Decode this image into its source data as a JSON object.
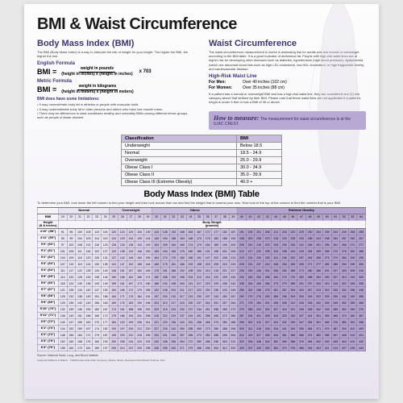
{
  "title": "BMI & Waist Circumference",
  "bmi": {
    "heading": "Body Mass Index (BMI)",
    "intro": "The BMI (Body Mass Index) is a way to interpret the risk of weight for your height. The higher the BMI, the higher the risk.",
    "english_label": "English Formula",
    "metric_label": "Metric Formula",
    "bmi_eq": "BMI =",
    "english_num": "weight in pounds",
    "english_den": "(height in inches) x (height in inches)",
    "x703": "x 703",
    "metric_num": "weight in kilograms",
    "metric_den": "(height in meters) x (height in meters)",
    "limits_heading": "BMI does have some limitations:",
    "limits": [
      "It may overestimate body fat in athletes or people with muscular build.",
      "It may underestimate body fat in older persons and others who have lost muscle mass.",
      "There may be differences in what constitutes healthy and unhealthy BMIs among different ethnic groups, such as people of Asian descent."
    ]
  },
  "waist": {
    "heading": "Waist Circumference",
    "intro": "The waist circumference measurement is useful in assessing risk for adults who are normal or overweight according to the BMI table. It is a good indicator of abdominal fat. People with high-risk waist lines are at higher risk for developing other diseases such as diabetes, hypertension (high blood pressure), dyslipidemia (which are abnormal blood fats such as high LDL cholesterol, low HDL cholesterol, or high triglyceride levels), and cardiovascular disease.",
    "hr_heading": "High-Risk Waist Line",
    "hr_men_label": "For Men:",
    "hr_men_val": "Over 40 inches (102 cm)",
    "hr_women_label": "For Women:",
    "hr_women_val": "Over 35 inches (88 cm)",
    "hr_note": "If a patient has a normal or overweight BMI and has a high-risk waist line, they are considered one (1) risk category above that defined by their BMI. Please note that these waist lines are not applicable if a patient's height is under 5 feet or has a BMI of 35 or above.",
    "how_title": "How to measure:",
    "how_text": "The measurement for waist circumference is at the ILIAC CREST."
  },
  "classification": {
    "headers": [
      "Classification",
      "BMI"
    ],
    "rows": [
      [
        "Underweight",
        "Below 18.5"
      ],
      [
        "Normal",
        "18.5 - 24.9"
      ],
      [
        "Overweight",
        "25.0 - 29.9"
      ],
      [
        "Obese Class I",
        "30.0 - 34.9"
      ],
      [
        "Obese Class II",
        "35.0 - 39.9"
      ],
      [
        "Obese Class III (Extreme Obesity)",
        "40.0 +"
      ]
    ]
  },
  "bmitable": {
    "title": "Body Mass Index (BMI) Table",
    "blurb": "To determine your BMI, look down the left column to find your height and then look across that row and find the weight that is nearest your own. Now look to the top of the column to find the number that is your BMI.",
    "categories": [
      {
        "label": "Normal",
        "span": 6,
        "class": "cat-normal"
      },
      {
        "label": "Overweight",
        "span": 5,
        "class": "cat-over"
      },
      {
        "label": "Obese",
        "span": 10,
        "class": "cat-obese"
      },
      {
        "label": "Extreme Obesity",
        "span": 15,
        "class": "cat-ext"
      }
    ],
    "bmi_header_label": "BMI",
    "height_header": "Height",
    "height_sub": "(ft & inches)",
    "body_weight_label": "Body Weight",
    "body_weight_sub": "(pounds)",
    "bmi_values": [
      19,
      20,
      21,
      22,
      23,
      24,
      25,
      26,
      27,
      28,
      29,
      30,
      31,
      32,
      33,
      34,
      35,
      36,
      37,
      38,
      39,
      40,
      41,
      42,
      43,
      44,
      45,
      46,
      47,
      48,
      49,
      50,
      51,
      52,
      53,
      54
    ],
    "heights_label": [
      "4'10\" (58\")",
      "4'11\" (59\")",
      "5'0\" (60\")",
      "5'1\" (61\")",
      "5'2\" (62\")",
      "5'3\" (63\")",
      "5'4\" (64\")",
      "5'5\" (65\")",
      "5'6\" (66\")",
      "5'7\" (67\")",
      "5'8\" (68\")",
      "5'9\" (69\")",
      "5'10\" (70\")",
      "5'11\" (71\")",
      "6'0\" (72\")",
      "6'1\" (73\")",
      "6'2\" (74\")",
      "6'3\" (75\")",
      "6'4\" (76\")"
    ],
    "heights_in": [
      58,
      59,
      60,
      61,
      62,
      63,
      64,
      65,
      66,
      67,
      68,
      69,
      70,
      71,
      72,
      73,
      74,
      75,
      76
    ],
    "footer": "Source: National Heart, Lung, and Blood Institute",
    "copyright": "Lippincott Williams & Wilkins · ©2008 Anatomical Chart Company, Skokie, Illinois. Developed with Robert Kushner, M.D."
  },
  "colors": {
    "purple_dark": "#403570",
    "cat_normal": "#e9e4f1",
    "cat_over": "#d9d0e8",
    "cat_obese": "#c9bddd",
    "cat_ext": "#b3a3ce"
  }
}
